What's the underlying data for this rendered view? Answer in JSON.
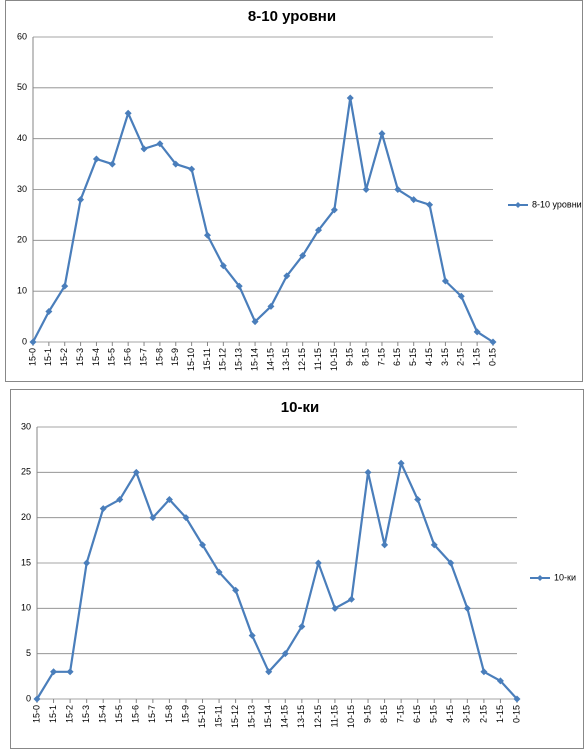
{
  "chart_data": [
    {
      "type": "line",
      "title": "8-10 уровни",
      "categories": [
        "15-0",
        "15-1",
        "15-2",
        "15-3",
        "15-4",
        "15-5",
        "15-6",
        "15-7",
        "15-8",
        "15-9",
        "15-10",
        "15-11",
        "15-12",
        "15-13",
        "15-14",
        "14-15",
        "13-15",
        "12-15",
        "11-15",
        "10-15",
        "9-15",
        "8-15",
        "7-15",
        "6-15",
        "5-15",
        "4-15",
        "3-15",
        "2-15",
        "1-15",
        "0-15"
      ],
      "series": [
        {
          "name": "8-10 уровни",
          "color": "#4a7ebb",
          "values": [
            0,
            6,
            11,
            28,
            36,
            35,
            45,
            38,
            39,
            35,
            34,
            21,
            15,
            11,
            4,
            7,
            13,
            17,
            22,
            26,
            48,
            30,
            41,
            30,
            28,
            27,
            12,
            9,
            2,
            0
          ]
        }
      ],
      "ylim": [
        0,
        60
      ],
      "yticks": [
        0,
        10,
        20,
        30,
        40,
        50,
        60
      ],
      "grid": true,
      "legend": "right"
    },
    {
      "type": "line",
      "title": "10-ки",
      "categories": [
        "15-0",
        "15-1",
        "15-2",
        "15-3",
        "15-4",
        "15-5",
        "15-6",
        "15-7",
        "15-8",
        "15-9",
        "15-10",
        "15-11",
        "15-12",
        "15-13",
        "15-14",
        "14-15",
        "13-15",
        "12-15",
        "11-15",
        "10-15",
        "9-15",
        "8-15",
        "7-15",
        "6-15",
        "5-15",
        "4-15",
        "3-15",
        "2-15",
        "1-15",
        "0-15"
      ],
      "series": [
        {
          "name": "10-ки",
          "color": "#4a7ebb",
          "values": [
            0,
            3,
            3,
            15,
            21,
            22,
            25,
            20,
            22,
            20,
            17,
            14,
            12,
            7,
            3,
            5,
            8,
            15,
            10,
            11,
            25,
            17,
            26,
            22,
            17,
            15,
            10,
            3,
            2,
            0
          ]
        }
      ],
      "ylim": [
        0,
        30
      ],
      "yticks": [
        0,
        5,
        10,
        15,
        20,
        25,
        30
      ],
      "grid": true,
      "legend": "right"
    }
  ]
}
